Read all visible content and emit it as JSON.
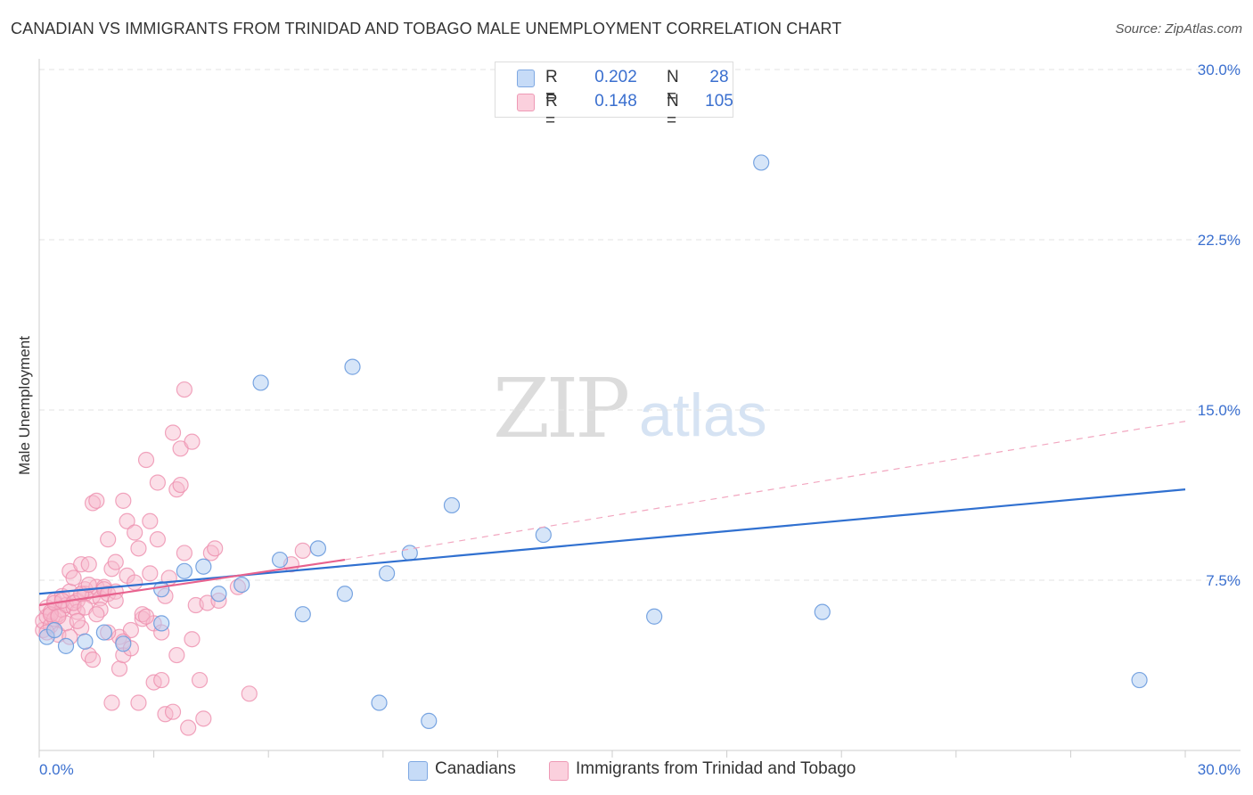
{
  "title": "CANADIAN VS IMMIGRANTS FROM TRINIDAD AND TOBAGO MALE UNEMPLOYMENT CORRELATION CHART",
  "source": "Source: ZipAtlas.com",
  "watermark": {
    "zip": "ZIP",
    "atlas": "atlas"
  },
  "legend_top": {
    "rows": [
      {
        "r_label": "R =",
        "r_value": "0.202",
        "n_label": "N =",
        "n_value": "28",
        "color": "#aecbf1"
      },
      {
        "r_label": "R =",
        "r_value": "0.148",
        "n_label": "N =",
        "n_value": "105",
        "color": "#f7b9cc"
      }
    ]
  },
  "legend_bottom": [
    {
      "label": "Canadians",
      "color": "#aecbf1"
    },
    {
      "label": "Immigrants from Trinidad and Tobago",
      "color": "#f7b9cc"
    }
  ],
  "chart_data": {
    "type": "scatter",
    "title": "CANADIAN VS IMMIGRANTS FROM TRINIDAD AND TOBAGO MALE UNEMPLOYMENT CORRELATION CHART",
    "xlabel": "",
    "ylabel": "Male Unemployment",
    "xlim": [
      0,
      30
    ],
    "ylim": [
      0,
      30
    ],
    "x_tick_labels": [
      "0.0%",
      "30.0%"
    ],
    "y_ticks": [
      7.5,
      15.0,
      22.5,
      30.0
    ],
    "y_tick_labels": [
      "7.5%",
      "15.0%",
      "22.5%",
      "30.0%"
    ],
    "grid": true,
    "series": [
      {
        "name": "Canadians",
        "color": "#6a9bde",
        "fill": "#aecbf1",
        "trend": {
          "x0": 0,
          "y0": 6.9,
          "x1": 30,
          "y1": 11.5,
          "color": "#3070d0"
        },
        "points": [
          [
            0.2,
            5.0
          ],
          [
            1.2,
            4.8
          ],
          [
            0.7,
            4.6
          ],
          [
            2.2,
            4.7
          ],
          [
            1.7,
            5.2
          ],
          [
            3.2,
            5.6
          ],
          [
            3.2,
            7.1
          ],
          [
            3.8,
            7.9
          ],
          [
            4.3,
            8.1
          ],
          [
            4.7,
            6.9
          ],
          [
            5.3,
            7.3
          ],
          [
            5.8,
            16.2
          ],
          [
            6.3,
            8.4
          ],
          [
            6.9,
            6.0
          ],
          [
            7.3,
            8.9
          ],
          [
            8.0,
            6.9
          ],
          [
            8.2,
            16.9
          ],
          [
            8.9,
            2.1
          ],
          [
            9.1,
            7.8
          ],
          [
            9.7,
            8.7
          ],
          [
            10.2,
            1.3
          ],
          [
            10.8,
            10.8
          ],
          [
            13.2,
            9.5
          ],
          [
            16.1,
            5.9
          ],
          [
            18.9,
            25.9
          ],
          [
            20.5,
            6.1
          ],
          [
            28.8,
            3.1
          ],
          [
            0.4,
            5.3
          ]
        ]
      },
      {
        "name": "Immigrants from Trinidad and Tobago",
        "color": "#ee8fae",
        "fill": "#f7b9cc",
        "trend": {
          "x0": 0,
          "y0": 6.4,
          "x1": 8.0,
          "y1": 8.4,
          "color": "#e8628e"
        },
        "trend_dashed": {
          "x0": 8.0,
          "y0": 8.4,
          "x1": 30,
          "y1": 14.5,
          "color": "#f2a7c0"
        },
        "points": [
          [
            0.1,
            5.3
          ],
          [
            0.1,
            5.7
          ],
          [
            0.2,
            5.9
          ],
          [
            0.2,
            6.3
          ],
          [
            0.3,
            5.5
          ],
          [
            0.3,
            6.1
          ],
          [
            0.4,
            5.8
          ],
          [
            0.4,
            6.6
          ],
          [
            0.5,
            5.1
          ],
          [
            0.5,
            6.0
          ],
          [
            0.6,
            6.8
          ],
          [
            0.6,
            6.2
          ],
          [
            0.7,
            6.4
          ],
          [
            0.7,
            5.6
          ],
          [
            0.8,
            7.0
          ],
          [
            0.8,
            7.9
          ],
          [
            0.9,
            6.3
          ],
          [
            0.9,
            7.6
          ],
          [
            1.0,
            6.6
          ],
          [
            1.0,
            6.1
          ],
          [
            1.1,
            5.4
          ],
          [
            1.1,
            8.2
          ],
          [
            1.2,
            7.1
          ],
          [
            1.2,
            6.9
          ],
          [
            1.3,
            8.2
          ],
          [
            1.3,
            4.2
          ],
          [
            1.4,
            6.8
          ],
          [
            1.4,
            10.9
          ],
          [
            1.5,
            7.2
          ],
          [
            1.5,
            11.0
          ],
          [
            1.6,
            6.7
          ],
          [
            1.7,
            7.2
          ],
          [
            1.7,
            7.1
          ],
          [
            1.8,
            9.3
          ],
          [
            1.8,
            6.9
          ],
          [
            1.9,
            8.0
          ],
          [
            1.9,
            2.1
          ],
          [
            2.0,
            8.3
          ],
          [
            2.0,
            7.0
          ],
          [
            2.1,
            3.6
          ],
          [
            2.1,
            5.0
          ],
          [
            2.2,
            11.0
          ],
          [
            2.2,
            4.2
          ],
          [
            2.3,
            10.1
          ],
          [
            2.3,
            7.7
          ],
          [
            2.4,
            5.3
          ],
          [
            2.5,
            9.6
          ],
          [
            2.6,
            2.1
          ],
          [
            2.6,
            8.9
          ],
          [
            2.7,
            5.8
          ],
          [
            2.7,
            6.0
          ],
          [
            2.8,
            12.8
          ],
          [
            2.9,
            10.1
          ],
          [
            2.9,
            7.8
          ],
          [
            3.0,
            3.0
          ],
          [
            3.0,
            5.6
          ],
          [
            3.1,
            11.8
          ],
          [
            3.1,
            9.3
          ],
          [
            3.2,
            3.1
          ],
          [
            3.2,
            5.2
          ],
          [
            3.3,
            6.8
          ],
          [
            3.3,
            1.6
          ],
          [
            3.4,
            7.6
          ],
          [
            3.5,
            14.0
          ],
          [
            3.5,
            1.7
          ],
          [
            3.6,
            4.2
          ],
          [
            3.6,
            11.5
          ],
          [
            3.7,
            11.7
          ],
          [
            3.7,
            13.3
          ],
          [
            3.8,
            15.9
          ],
          [
            3.8,
            8.7
          ],
          [
            3.9,
            1.0
          ],
          [
            4.0,
            13.6
          ],
          [
            4.0,
            4.9
          ],
          [
            4.1,
            6.4
          ],
          [
            4.2,
            3.1
          ],
          [
            4.3,
            1.4
          ],
          [
            4.4,
            6.5
          ],
          [
            4.5,
            8.7
          ],
          [
            4.6,
            8.9
          ],
          [
            4.7,
            6.6
          ],
          [
            5.2,
            7.2
          ],
          [
            5.5,
            2.5
          ],
          [
            6.6,
            8.2
          ],
          [
            6.9,
            8.8
          ],
          [
            0.2,
            5.2
          ],
          [
            0.3,
            6.0
          ],
          [
            0.4,
            6.5
          ],
          [
            0.5,
            5.9
          ],
          [
            0.6,
            6.6
          ],
          [
            0.9,
            6.5
          ],
          [
            1.0,
            5.7
          ],
          [
            1.1,
            6.9
          ],
          [
            1.2,
            6.3
          ],
          [
            1.3,
            7.3
          ],
          [
            1.4,
            4.0
          ],
          [
            1.6,
            6.2
          ],
          [
            1.8,
            5.2
          ],
          [
            2.0,
            6.6
          ],
          [
            2.2,
            4.8
          ],
          [
            2.4,
            4.5
          ],
          [
            2.5,
            7.4
          ],
          [
            0.8,
            5.0
          ],
          [
            1.5,
            6.0
          ],
          [
            2.8,
            5.9
          ]
        ]
      }
    ]
  }
}
